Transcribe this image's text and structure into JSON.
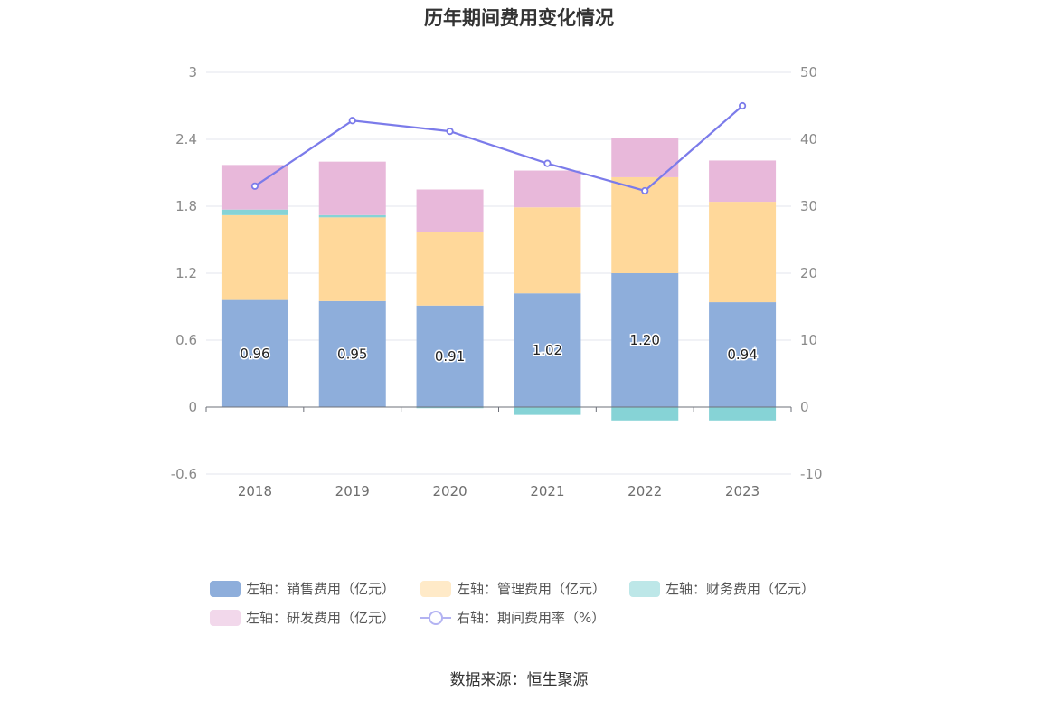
{
  "title": "历年期间费用变化情况",
  "source": "数据来源：恒生聚源",
  "chart_data": {
    "type": "bar",
    "stacked": true,
    "categories": [
      "2018",
      "2019",
      "2020",
      "2021",
      "2022",
      "2023"
    ],
    "series": [
      {
        "name": "左轴：销售费用（亿元）",
        "axis": "left",
        "type": "bar",
        "color": "#8eaedb",
        "values": [
          0.96,
          0.95,
          0.91,
          1.02,
          1.2,
          0.94
        ],
        "labels": [
          "0.96",
          "0.95",
          "0.91",
          "1.02",
          "1.20",
          "0.94"
        ]
      },
      {
        "name": "左轴：管理费用（亿元）",
        "axis": "left",
        "type": "bar",
        "color": "#ffd89a",
        "values": [
          0.76,
          0.75,
          0.66,
          0.77,
          0.86,
          0.9
        ]
      },
      {
        "name": "左轴：财务费用（亿元）",
        "axis": "left",
        "type": "bar",
        "color": "#86d3d6",
        "values": [
          0.05,
          0.02,
          -0.01,
          -0.07,
          -0.12,
          -0.12
        ]
      },
      {
        "name": "左轴：研发费用（亿元）",
        "axis": "left",
        "type": "bar",
        "color": "#e8b8da",
        "values": [
          0.4,
          0.48,
          0.38,
          0.33,
          0.35,
          0.37
        ]
      },
      {
        "name": "右轴：期间费用率（%）",
        "axis": "right",
        "type": "line",
        "color": "#7b7bea",
        "values": [
          33.0,
          42.8,
          41.2,
          36.4,
          32.3,
          45.0
        ]
      }
    ],
    "left_axis": {
      "ylim": [
        -0.6,
        3
      ],
      "ticks": [
        "-0.6",
        "0",
        "0.6",
        "1.2",
        "1.8",
        "2.4",
        "3"
      ]
    },
    "right_axis": {
      "ylim": [
        -10,
        50
      ],
      "ticks": [
        "-10",
        "0",
        "10",
        "20",
        "30",
        "40",
        "50"
      ]
    },
    "grid": true,
    "legend_position": "bottom"
  }
}
